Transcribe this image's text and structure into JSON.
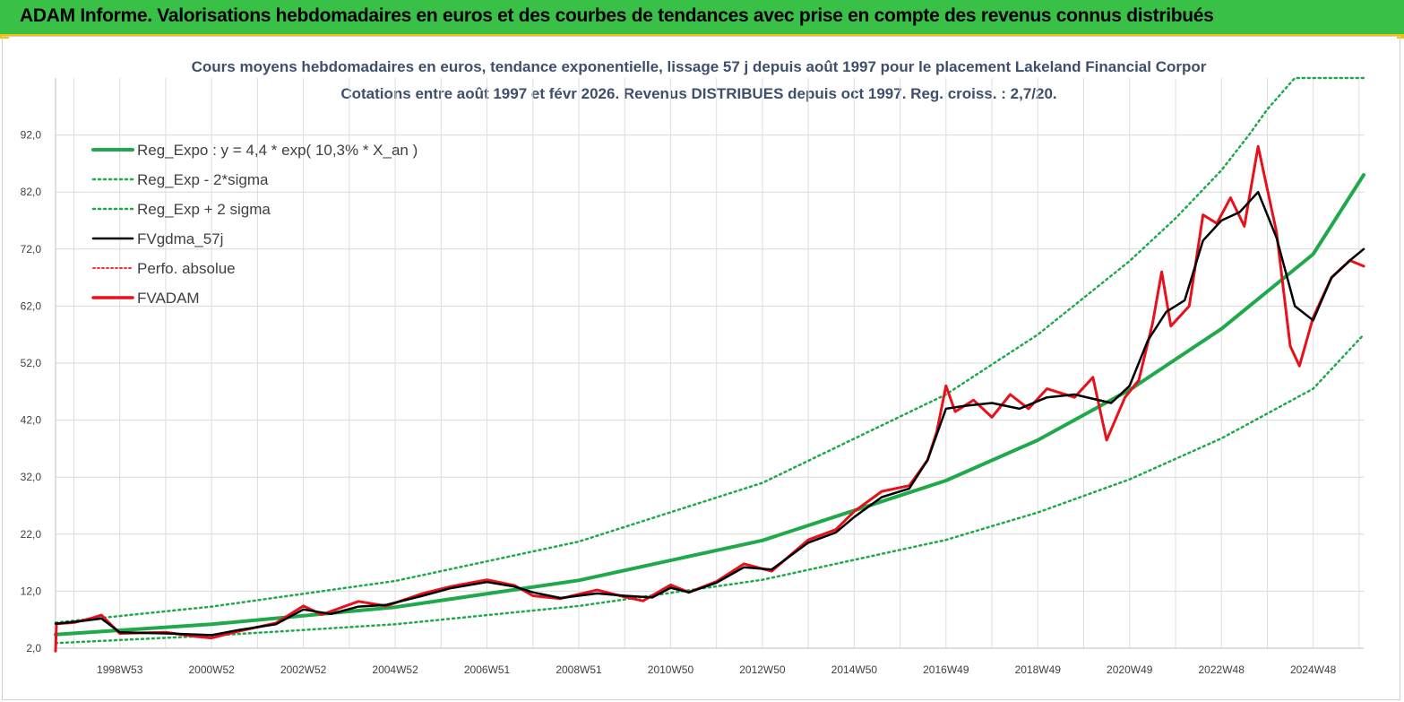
{
  "header": {
    "title": "ADAM Informe. Valorisations hebdomadaires en euros et des courbes de tendances avec prise en compte des revenus connus distribués"
  },
  "colors": {
    "banner": "#38c047",
    "accent": "#f2c200",
    "reg": "#1fa94a",
    "fvadam": "#e8101a",
    "fvgdma": "#000000",
    "title": "#3f4f6b"
  },
  "chart_data": {
    "type": "line",
    "title": "Cours moyens hebdomadaires en euros, tendance exponentielle, lissage 57 j depuis août 1997 pour le placement Lakeland Financial Corpor",
    "subtitle": "Cotations entre août 1997 et févr 2026. Revenus DISTRIBUES depuis oct 1997. Reg. croiss. : 2,7/20.",
    "xlabel": "",
    "ylabel": "",
    "x_start": 1997.6,
    "x_end": 2026.1,
    "ylim": [
      2,
      102
    ],
    "yticks": [
      "2,0",
      "12,0",
      "22,0",
      "32,0",
      "42,0",
      "52,0",
      "62,0",
      "72,0",
      "82,0",
      "92,0"
    ],
    "xticks": [
      {
        "label": "1998W53",
        "x": 1999.0
      },
      {
        "label": "2000W52",
        "x": 2001.0
      },
      {
        "label": "2002W52",
        "x": 2003.0
      },
      {
        "label": "2004W52",
        "x": 2005.0
      },
      {
        "label": "2006W51",
        "x": 2007.0
      },
      {
        "label": "2008W51",
        "x": 2009.0
      },
      {
        "label": "2010W50",
        "x": 2011.0
      },
      {
        "label": "2012W50",
        "x": 2013.0
      },
      {
        "label": "2014W50",
        "x": 2015.0
      },
      {
        "label": "2016W49",
        "x": 2017.0
      },
      {
        "label": "2018W49",
        "x": 2019.0
      },
      {
        "label": "2020W49",
        "x": 2021.0
      },
      {
        "label": "2022W48",
        "x": 2023.0
      },
      {
        "label": "2024W48",
        "x": 2025.0
      }
    ],
    "grid": true,
    "legend_position": "top-left",
    "legend": [
      {
        "name": "Reg_Expo : y = 4,4 * exp( 10,3% *  X_an )",
        "style": "thick",
        "color": "#1fa94a"
      },
      {
        "name": "Reg_Exp - 2*sigma",
        "style": "dotted",
        "color": "#1fa94a"
      },
      {
        "name": "Reg_Exp + 2 sigma",
        "style": "dotted",
        "color": "#1fa94a"
      },
      {
        "name": "FVgdma_57j",
        "style": "solid",
        "color": "#000000"
      },
      {
        "name": "Perfo. absolue",
        "style": "dotted",
        "color": "#e8101a"
      },
      {
        "name": "FVADAM",
        "style": "thick",
        "color": "#e8101a"
      }
    ],
    "series": [
      {
        "name": "Reg_Expo : y = 4,4 * exp( 10,3% *  X_an )",
        "values": [
          [
            1997.6,
            4.4
          ],
          [
            2001,
            6.2
          ],
          [
            2005,
            9.2
          ],
          [
            2009,
            13.9
          ],
          [
            2013,
            20.9
          ],
          [
            2017,
            31.4
          ],
          [
            2019,
            38.5
          ],
          [
            2021,
            47.3
          ],
          [
            2023,
            58.0
          ],
          [
            2025,
            71.1
          ],
          [
            2026.1,
            85.0
          ]
        ]
      },
      {
        "name": "Reg_Exp - 2*sigma",
        "values": [
          [
            1997.6,
            2.9
          ],
          [
            2001,
            4.2
          ],
          [
            2005,
            6.2
          ],
          [
            2009,
            9.4
          ],
          [
            2013,
            14.0
          ],
          [
            2017,
            21.0
          ],
          [
            2019,
            25.8
          ],
          [
            2021,
            31.6
          ],
          [
            2023,
            38.8
          ],
          [
            2025,
            47.5
          ],
          [
            2026.1,
            57.0
          ]
        ]
      },
      {
        "name": "Reg_Exp + 2 sigma",
        "values": [
          [
            1997.6,
            6.5
          ],
          [
            2001,
            9.3
          ],
          [
            2005,
            13.8
          ],
          [
            2009,
            20.7
          ],
          [
            2013,
            31.0
          ],
          [
            2017,
            46.5
          ],
          [
            2019,
            57.0
          ],
          [
            2021,
            69.9
          ],
          [
            2022,
            77.4
          ],
          [
            2023,
            85.8
          ],
          [
            2023.6,
            92.0
          ],
          [
            2024.0,
            96.5
          ],
          [
            2024.6,
            102.0
          ],
          [
            2026.1,
            102.0
          ]
        ]
      },
      {
        "name": "FVgdma_57j",
        "values": [
          [
            1997.6,
            6.3
          ],
          [
            1998.2,
            6.8
          ],
          [
            1998.6,
            7.2
          ],
          [
            1999.0,
            4.8
          ],
          [
            2000,
            4.6
          ],
          [
            2001,
            4.3
          ],
          [
            2001.6,
            5.2
          ],
          [
            2002.4,
            6.2
          ],
          [
            2003,
            8.8
          ],
          [
            2003.6,
            8.0
          ],
          [
            2004.2,
            9.3
          ],
          [
            2004.8,
            9.6
          ],
          [
            2005.6,
            11.2
          ],
          [
            2006.2,
            12.5
          ],
          [
            2007,
            13.6
          ],
          [
            2007.6,
            12.8
          ],
          [
            2008,
            11.8
          ],
          [
            2008.6,
            10.8
          ],
          [
            2009.4,
            11.6
          ],
          [
            2010,
            11.2
          ],
          [
            2010.6,
            10.9
          ],
          [
            2011.0,
            12.6
          ],
          [
            2011.4,
            11.8
          ],
          [
            2012,
            13.5
          ],
          [
            2012.6,
            16.2
          ],
          [
            2013.2,
            15.8
          ],
          [
            2014,
            20.5
          ],
          [
            2014.6,
            22.3
          ],
          [
            2015.0,
            25.0
          ],
          [
            2015.6,
            28.5
          ],
          [
            2016.2,
            30.0
          ],
          [
            2016.6,
            35.0
          ],
          [
            2017.0,
            44.0
          ],
          [
            2017.4,
            44.5
          ],
          [
            2018,
            45.0
          ],
          [
            2018.6,
            44.0
          ],
          [
            2019.2,
            46.0
          ],
          [
            2019.8,
            46.5
          ],
          [
            2020.6,
            45.0
          ],
          [
            2021.0,
            48.0
          ],
          [
            2021.4,
            56.0
          ],
          [
            2021.8,
            61.0
          ],
          [
            2022.2,
            63.0
          ],
          [
            2022.6,
            73.5
          ],
          [
            2023.0,
            77.0
          ],
          [
            2023.4,
            78.5
          ],
          [
            2023.8,
            82.0
          ],
          [
            2024.2,
            74.0
          ],
          [
            2024.6,
            62.0
          ],
          [
            2025.0,
            59.5
          ],
          [
            2025.4,
            67.0
          ],
          [
            2025.8,
            70.0
          ],
          [
            2026.1,
            72.0
          ]
        ]
      },
      {
        "name": "FVADAM",
        "values": [
          [
            1997.6,
            1.5
          ],
          [
            1997.62,
            6.3
          ],
          [
            1998.0,
            6.5
          ],
          [
            1998.4,
            7.3
          ],
          [
            1998.6,
            7.8
          ],
          [
            1999.0,
            4.6
          ],
          [
            2000,
            4.8
          ],
          [
            2000.6,
            4.1
          ],
          [
            2001,
            3.8
          ],
          [
            2001.6,
            5.0
          ],
          [
            2002.4,
            6.4
          ],
          [
            2003.0,
            9.4
          ],
          [
            2003.4,
            7.9
          ],
          [
            2004.2,
            10.2
          ],
          [
            2004.8,
            9.4
          ],
          [
            2005.6,
            11.6
          ],
          [
            2006.2,
            12.8
          ],
          [
            2007.0,
            14.0
          ],
          [
            2007.6,
            13.0
          ],
          [
            2008.0,
            11.2
          ],
          [
            2008.6,
            10.7
          ],
          [
            2009.4,
            12.2
          ],
          [
            2010.0,
            11.0
          ],
          [
            2010.4,
            10.3
          ],
          [
            2011.0,
            13.1
          ],
          [
            2011.4,
            11.8
          ],
          [
            2012.0,
            13.7
          ],
          [
            2012.6,
            16.8
          ],
          [
            2013.2,
            15.5
          ],
          [
            2014.0,
            21.0
          ],
          [
            2014.6,
            22.8
          ],
          [
            2015.0,
            26.0
          ],
          [
            2015.6,
            29.5
          ],
          [
            2016.2,
            30.5
          ],
          [
            2016.6,
            35.0
          ],
          [
            2016.8,
            40.0
          ],
          [
            2017.0,
            48.0
          ],
          [
            2017.2,
            43.5
          ],
          [
            2017.6,
            45.5
          ],
          [
            2018.0,
            42.5
          ],
          [
            2018.4,
            46.5
          ],
          [
            2018.8,
            44.0
          ],
          [
            2019.2,
            47.5
          ],
          [
            2019.8,
            46.0
          ],
          [
            2020.2,
            49.5
          ],
          [
            2020.5,
            38.5
          ],
          [
            2020.9,
            46.0
          ],
          [
            2021.2,
            49.0
          ],
          [
            2021.5,
            59.0
          ],
          [
            2021.7,
            68.0
          ],
          [
            2021.9,
            58.5
          ],
          [
            2022.3,
            62.0
          ],
          [
            2022.6,
            78.0
          ],
          [
            2022.9,
            76.5
          ],
          [
            2023.2,
            81.0
          ],
          [
            2023.5,
            76.0
          ],
          [
            2023.8,
            90.0
          ],
          [
            2024.2,
            75.0
          ],
          [
            2024.5,
            55.0
          ],
          [
            2024.7,
            51.5
          ],
          [
            2025.0,
            60.0
          ],
          [
            2025.4,
            67.0
          ],
          [
            2025.8,
            70.0
          ],
          [
            2026.1,
            69.0
          ]
        ]
      }
    ]
  }
}
